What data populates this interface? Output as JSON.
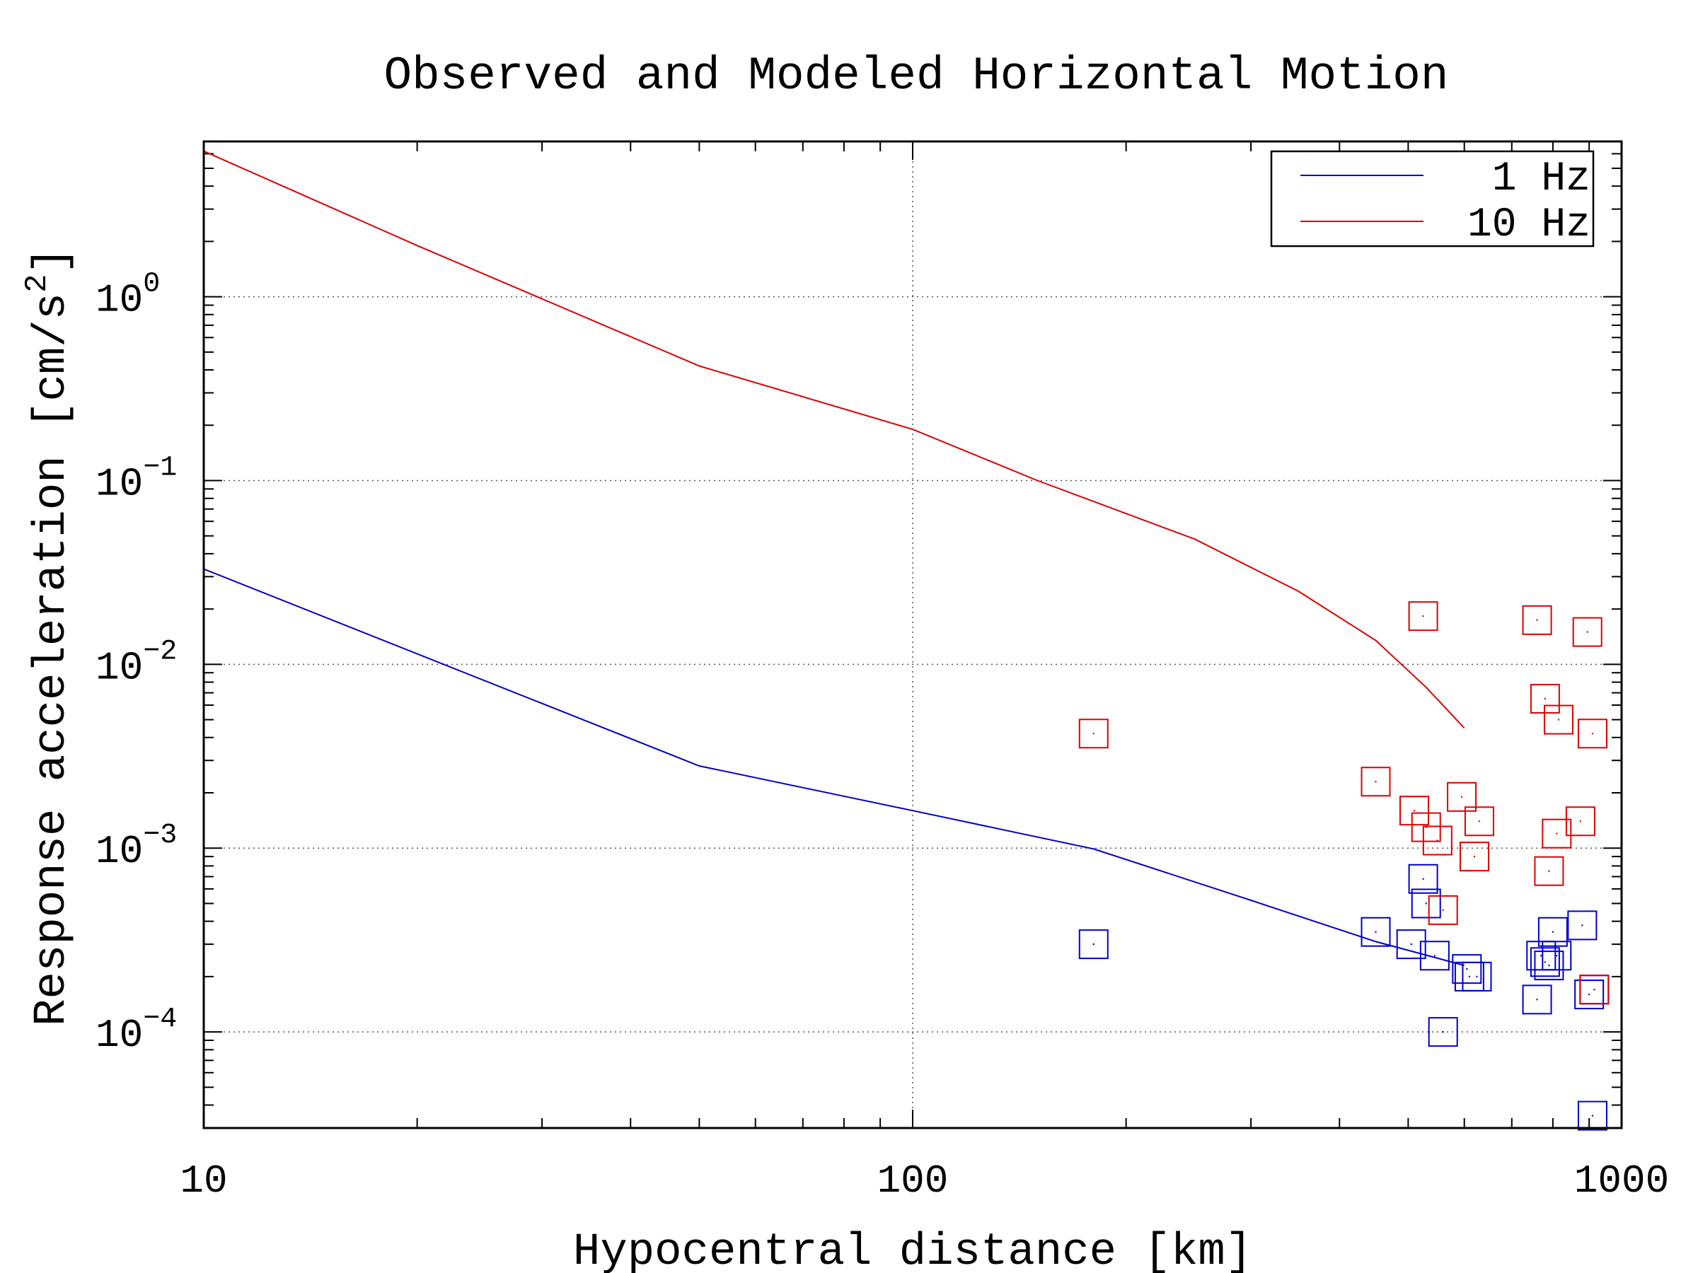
{
  "chart_data": {
    "type": "line",
    "title": "Observed and Modeled Horizontal Motion",
    "xlabel": "Hypocentral distance [km]",
    "ylabel_main": "Response acceleration [cm/s",
    "ylabel_sup": "2",
    "ylabel_close": "]",
    "x_scale": "log",
    "y_scale": "log",
    "xlim": [
      10,
      1000
    ],
    "ylim": [
      3e-05,
      7
    ],
    "grid": true,
    "legend_position": "top-right",
    "x_ticks": [
      {
        "value": 10,
        "label": "10"
      },
      {
        "value": 100,
        "label": "100"
      },
      {
        "value": 1000,
        "label": "1000"
      }
    ],
    "y_ticks": [
      {
        "value": 1,
        "base": "10",
        "exp": "0"
      },
      {
        "value": 0.1,
        "base": "10",
        "exp": "−1"
      },
      {
        "value": 0.01,
        "base": "10",
        "exp": "−2"
      },
      {
        "value": 0.001,
        "base": "10",
        "exp": "−3"
      },
      {
        "value": 0.0001,
        "base": "10",
        "exp": "−4"
      }
    ],
    "series": [
      {
        "name": "1 Hz",
        "color": "#0000cc",
        "x": [
          10,
          50,
          100,
          180,
          300,
          450,
          600
        ],
        "y": [
          0.033,
          0.0028,
          0.0016,
          0.00099,
          0.00052,
          0.00031,
          0.00023
        ]
      },
      {
        "name": "10 Hz",
        "color": "#dd0000",
        "x": [
          10,
          20,
          50,
          100,
          150,
          250,
          350,
          450,
          530,
          600
        ],
        "y": [
          6.2,
          1.9,
          0.42,
          0.19,
          0.1,
          0.048,
          0.025,
          0.0135,
          0.0075,
          0.0045
        ]
      }
    ],
    "observed": [
      {
        "name": "1 Hz",
        "color": "#0000cc",
        "points": [
          [
            180,
            0.0003
          ],
          [
            450,
            0.00035
          ],
          [
            505,
            0.0003
          ],
          [
            525,
            0.00068
          ],
          [
            530,
            0.0005
          ],
          [
            545,
            0.00026
          ],
          [
            560,
            0.0001
          ],
          [
            605,
            0.00022
          ],
          [
            610,
            0.0002
          ],
          [
            625,
            0.0002
          ],
          [
            760,
            0.00015
          ],
          [
            770,
            0.00026
          ],
          [
            780,
            0.00024
          ],
          [
            790,
            0.00023
          ],
          [
            800,
            0.00035
          ],
          [
            810,
            0.00026
          ],
          [
            880,
            0.00038
          ],
          [
            900,
            0.00016
          ],
          [
            910,
            3.5e-05
          ],
          [
            915,
            0.00017
          ]
        ]
      },
      {
        "name": "10 Hz",
        "color": "#dd0000",
        "points": [
          [
            180,
            0.0042
          ],
          [
            450,
            0.0023
          ],
          [
            510,
            0.0016
          ],
          [
            525,
            0.0183
          ],
          [
            530,
            0.0013
          ],
          [
            550,
            0.0011
          ],
          [
            560,
            0.00046
          ],
          [
            595,
            0.0019
          ],
          [
            620,
            0.0009
          ],
          [
            630,
            0.0014
          ],
          [
            760,
            0.0174
          ],
          [
            780,
            0.0065
          ],
          [
            790,
            0.00075
          ],
          [
            810,
            0.0012
          ],
          [
            815,
            0.005
          ],
          [
            875,
            0.0014
          ],
          [
            895,
            0.015
          ],
          [
            910,
            0.0042
          ],
          [
            915,
            0.00017
          ]
        ]
      }
    ]
  }
}
